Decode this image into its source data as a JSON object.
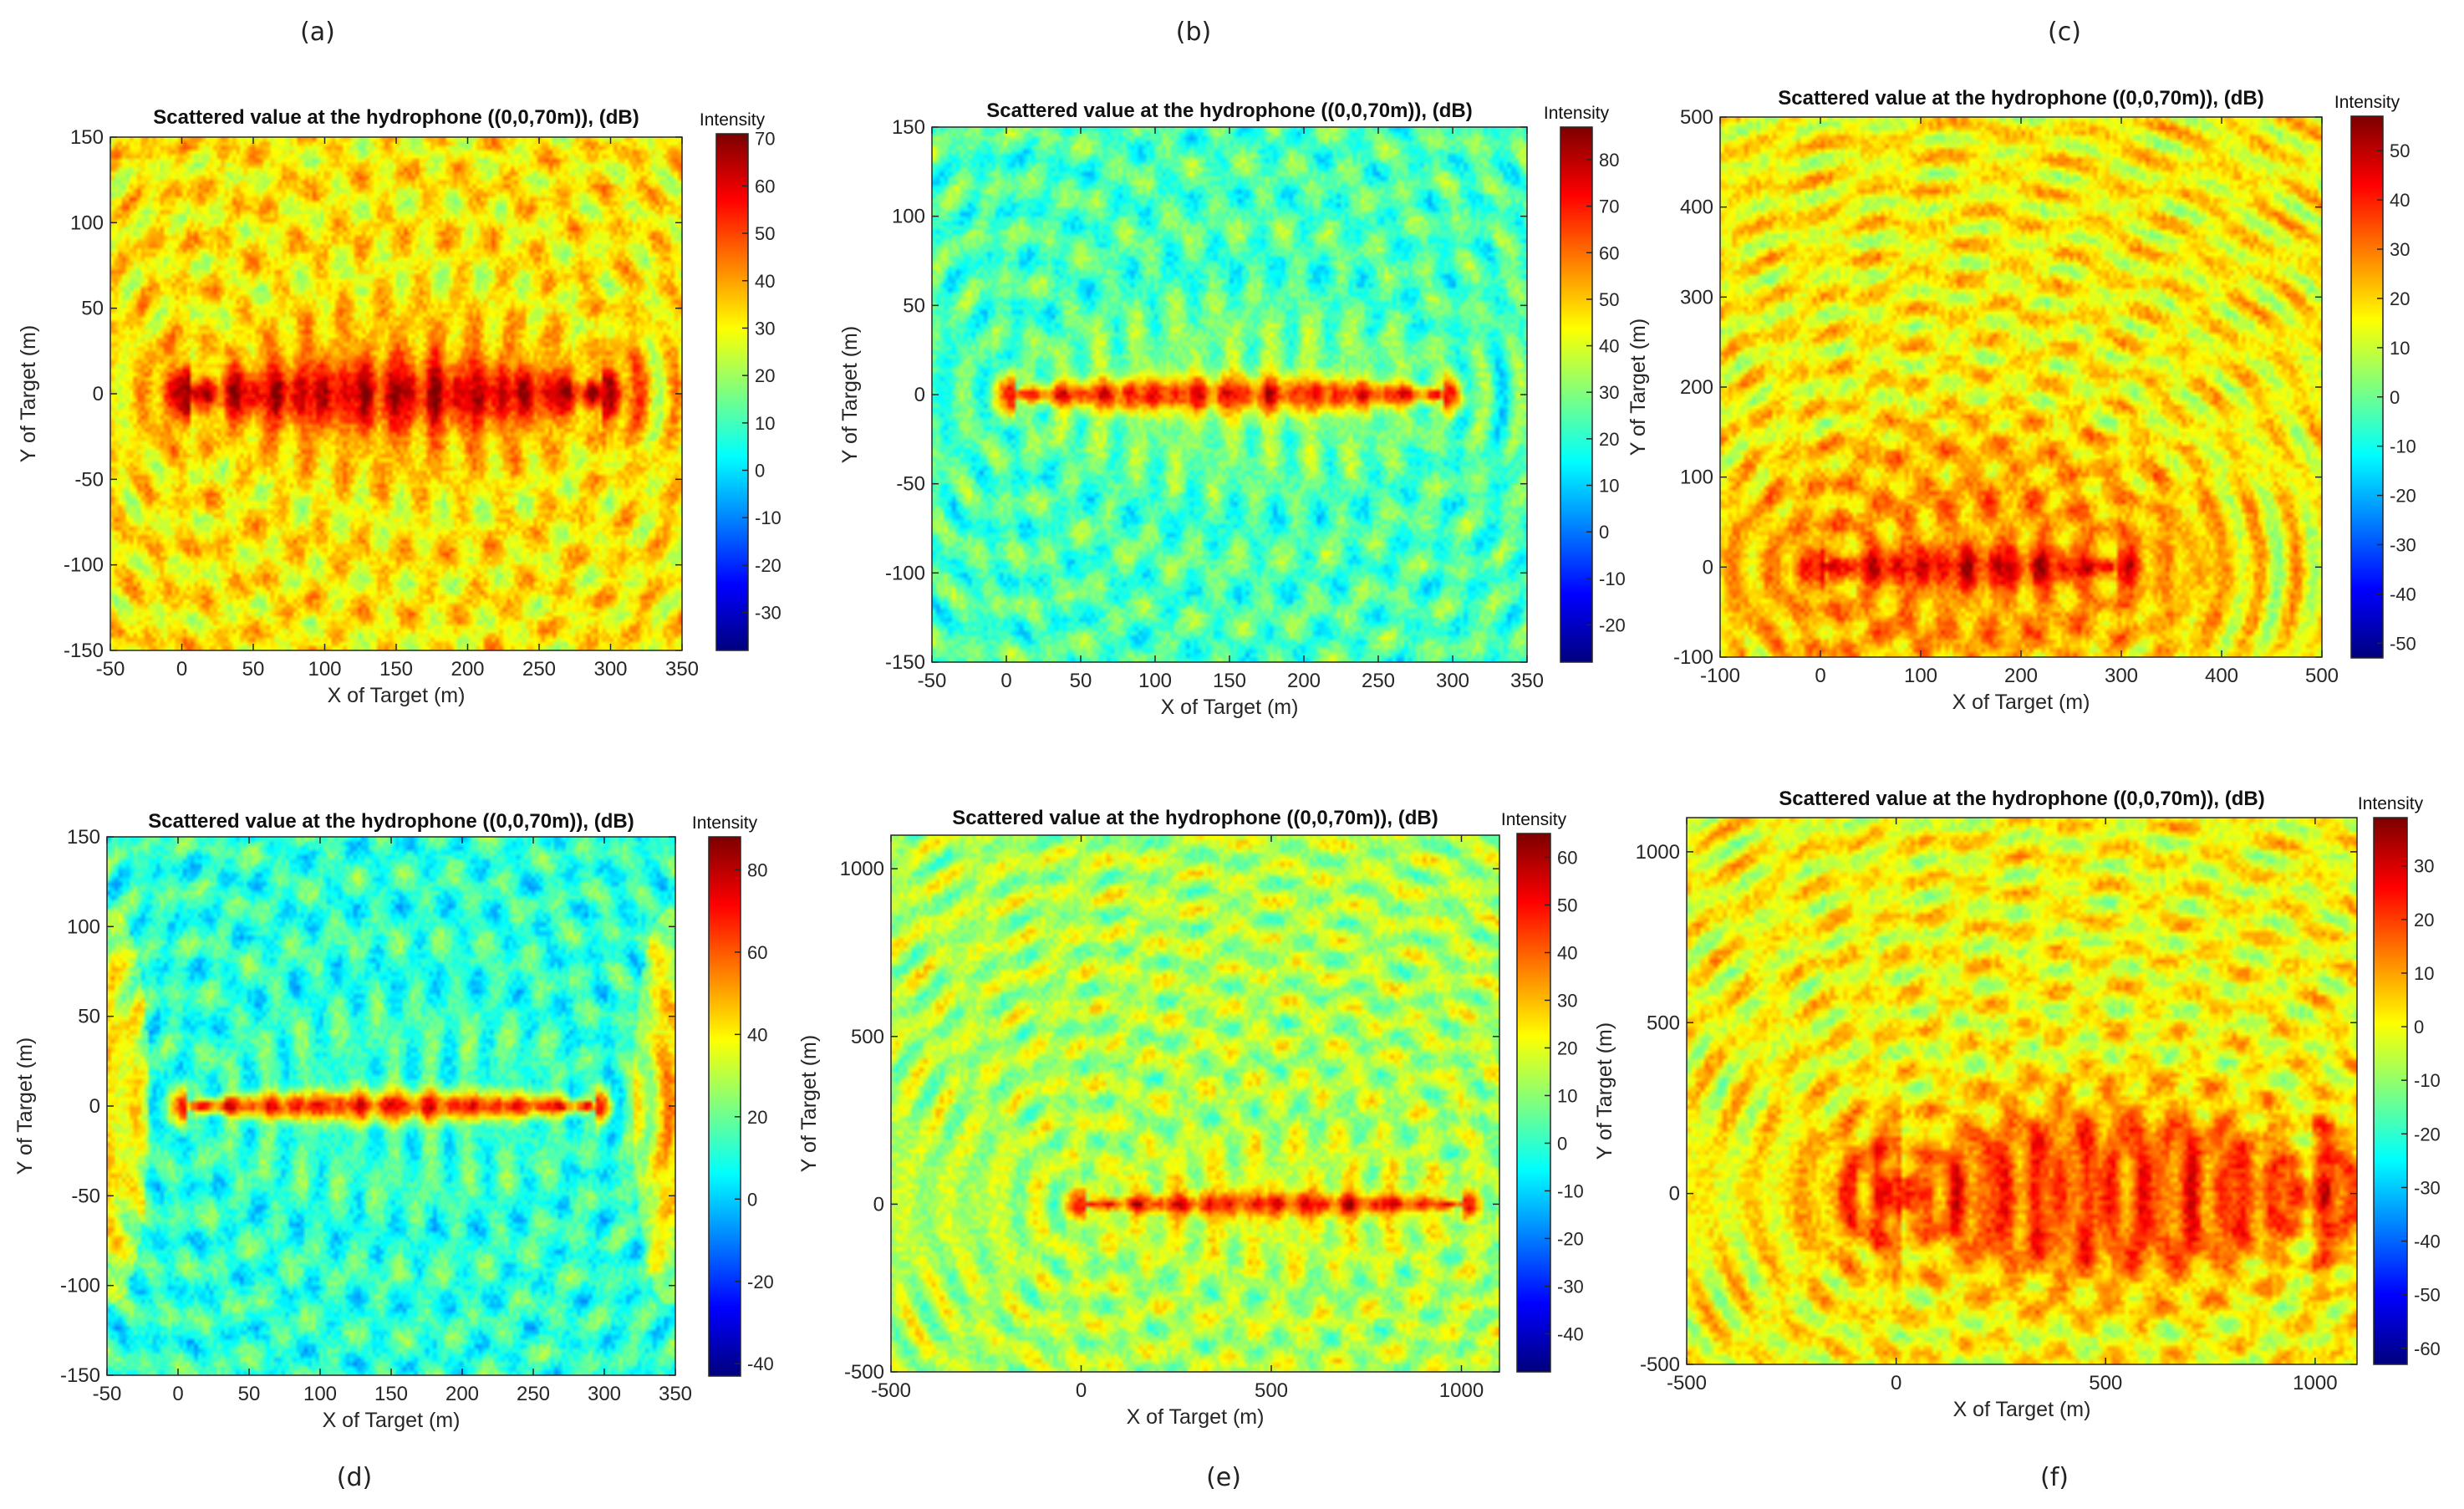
{
  "figure": {
    "panel_letters": [
      "(a)",
      "(b)",
      "(c)",
      "(d)",
      "(e)",
      "(f)"
    ]
  },
  "colors": {
    "background": "#ffffff",
    "axis": "#262626",
    "colormap": [
      "#00007f",
      "#0000ff",
      "#007fff",
      "#00ffff",
      "#7fff7f",
      "#ffff00",
      "#ff7f00",
      "#ff0000",
      "#7f0000"
    ]
  },
  "chart_data": [
    {
      "type": "heatmap",
      "panel": "(a)",
      "title": "Scattered value at the hydrophone ((0,0,70m)), (dB)",
      "xlabel": "X of Target (m)",
      "ylabel": "Y of Target (m)",
      "xlim": [
        -50,
        350
      ],
      "ylim": [
        -150,
        150
      ],
      "xticks": [
        -50,
        0,
        50,
        100,
        150,
        200,
        250,
        300,
        350
      ],
      "yticks": [
        -150,
        -100,
        -50,
        0,
        50,
        100,
        150
      ],
      "colorbar": {
        "label": "Intensity",
        "range": [
          -38,
          71
        ],
        "ticks": [
          -30,
          -20,
          -10,
          0,
          10,
          20,
          30,
          40,
          50,
          60,
          70
        ]
      },
      "background_level": 0.64,
      "hot_segment": {
        "x": [
          5,
          295
        ],
        "y": 0,
        "half_width": 25,
        "peak_level": 0.92
      },
      "lobes": [
        {
          "center": [
            150,
            0
          ],
          "rx": 170,
          "ry": 60,
          "level": 0.62
        }
      ]
    },
    {
      "type": "heatmap",
      "panel": "(b)",
      "title": "Scattered value at the hydrophone ((0,0,70m)), (dB)",
      "xlabel": "X of Target (m)",
      "ylabel": "Y of Target (m)",
      "xlim": [
        -50,
        350
      ],
      "ylim": [
        -150,
        150
      ],
      "xticks": [
        -50,
        0,
        50,
        100,
        150,
        200,
        250,
        300,
        350
      ],
      "yticks": [
        -150,
        -100,
        -50,
        0,
        50,
        100,
        150
      ],
      "colorbar": {
        "label": "Intensity",
        "range": [
          -28,
          87
        ],
        "ticks": [
          -20,
          -10,
          0,
          10,
          20,
          30,
          40,
          50,
          60,
          70,
          80
        ]
      },
      "background_level": 0.45,
      "hot_segment": {
        "x": [
          5,
          295
        ],
        "y": 0,
        "half_width": 12,
        "peak_level": 0.85
      },
      "lobes": [
        {
          "center": [
            150,
            0
          ],
          "rx": 165,
          "ry": 40,
          "level": 0.5
        }
      ]
    },
    {
      "type": "heatmap",
      "panel": "(c)",
      "title": "Scattered value at the hydrophone ((0,0,70m)), (dB)",
      "xlabel": "X of Target (m)",
      "ylabel": "Y of Target (m)",
      "xlim": [
        -100,
        500
      ],
      "ylim": [
        -100,
        500
      ],
      "xticks": [
        -100,
        0,
        100,
        200,
        300,
        400,
        500
      ],
      "yticks": [
        -100,
        0,
        100,
        200,
        300,
        400,
        500
      ],
      "colorbar": {
        "label": "Intensity",
        "range": [
          -53,
          57
        ],
        "ticks": [
          -50,
          -40,
          -30,
          -20,
          -10,
          0,
          10,
          20,
          30,
          40,
          50
        ]
      },
      "background_level": 0.63,
      "hot_segment": {
        "x": [
          5,
          295
        ],
        "y": 0,
        "half_width": 28,
        "peak_level": 0.9
      },
      "lobes": [
        {
          "center": [
            150,
            0
          ],
          "rx": 280,
          "ry": 170,
          "level": 0.72
        }
      ]
    },
    {
      "type": "heatmap",
      "panel": "(d)",
      "title": "Scattered value at the hydrophone ((0,0,70m)), (dB)",
      "xlabel": "X of Target (m)",
      "ylabel": "Y of Target (m)",
      "xlim": [
        -50,
        350
      ],
      "ylim": [
        -150,
        150
      ],
      "xticks": [
        -50,
        0,
        50,
        100,
        150,
        200,
        250,
        300,
        350
      ],
      "yticks": [
        -150,
        -100,
        -50,
        0,
        50,
        100,
        150
      ],
      "colorbar": {
        "label": "Intensity",
        "range": [
          -43,
          88
        ],
        "ticks": [
          -40,
          -20,
          0,
          20,
          40,
          60,
          80
        ]
      },
      "background_level": 0.42,
      "hot_segment": {
        "x": [
          5,
          295
        ],
        "y": 0,
        "half_width": 10,
        "peak_level": 0.85
      },
      "lobes": [
        {
          "center": [
            -45,
            0
          ],
          "rx": 25,
          "ry": 110,
          "level": 0.66
        },
        {
          "center": [
            345,
            0
          ],
          "rx": 25,
          "ry": 110,
          "level": 0.66
        }
      ]
    },
    {
      "type": "heatmap",
      "panel": "(e)",
      "title": "Scattered value at the hydrophone ((0,0,70m)), (dB)",
      "xlabel": "X of Target (m)",
      "ylabel": "Y of Target (m)",
      "xlim": [
        -500,
        1100
      ],
      "ylim": [
        -500,
        1100
      ],
      "xticks": [
        -500,
        0,
        500,
        1000
      ],
      "yticks": [
        -500,
        0,
        500,
        1000
      ],
      "colorbar": {
        "label": "Intensity",
        "range": [
          -48,
          65
        ],
        "ticks": [
          -40,
          -30,
          -20,
          -10,
          0,
          10,
          20,
          30,
          40,
          50,
          60
        ]
      },
      "background_level": 0.55,
      "hot_segment": {
        "x": [
          10,
          1000
        ],
        "y": 0,
        "half_width": 40,
        "peak_level": 0.86
      },
      "lobes": [
        {
          "center": [
            500,
            0
          ],
          "rx": 560,
          "ry": 120,
          "level": 0.6
        }
      ]
    },
    {
      "type": "heatmap",
      "panel": "(f)",
      "title": "Scattered value at the hydrophone ((0,0,70m)), (dB)",
      "xlabel": "X of Target (m)",
      "ylabel": "Y of Target (m)",
      "xlim": [
        -500,
        1100
      ],
      "ylim": [
        -500,
        1100
      ],
      "xticks": [
        -500,
        0,
        500,
        1000
      ],
      "yticks": [
        -500,
        0,
        500,
        1000
      ],
      "colorbar": {
        "label": "Intensity",
        "range": [
          -63,
          39
        ],
        "ticks": [
          -60,
          -50,
          -40,
          -30,
          -20,
          -10,
          0,
          10,
          20,
          30
        ]
      },
      "background_level": 0.62,
      "hot_segment": {
        "x": [
          10,
          990
        ],
        "y": 0,
        "half_width": 230,
        "peak_level": 0.82
      },
      "lobes": [
        {
          "center": [
            500,
            0
          ],
          "rx": 640,
          "ry": 360,
          "level": 0.7
        }
      ]
    }
  ]
}
